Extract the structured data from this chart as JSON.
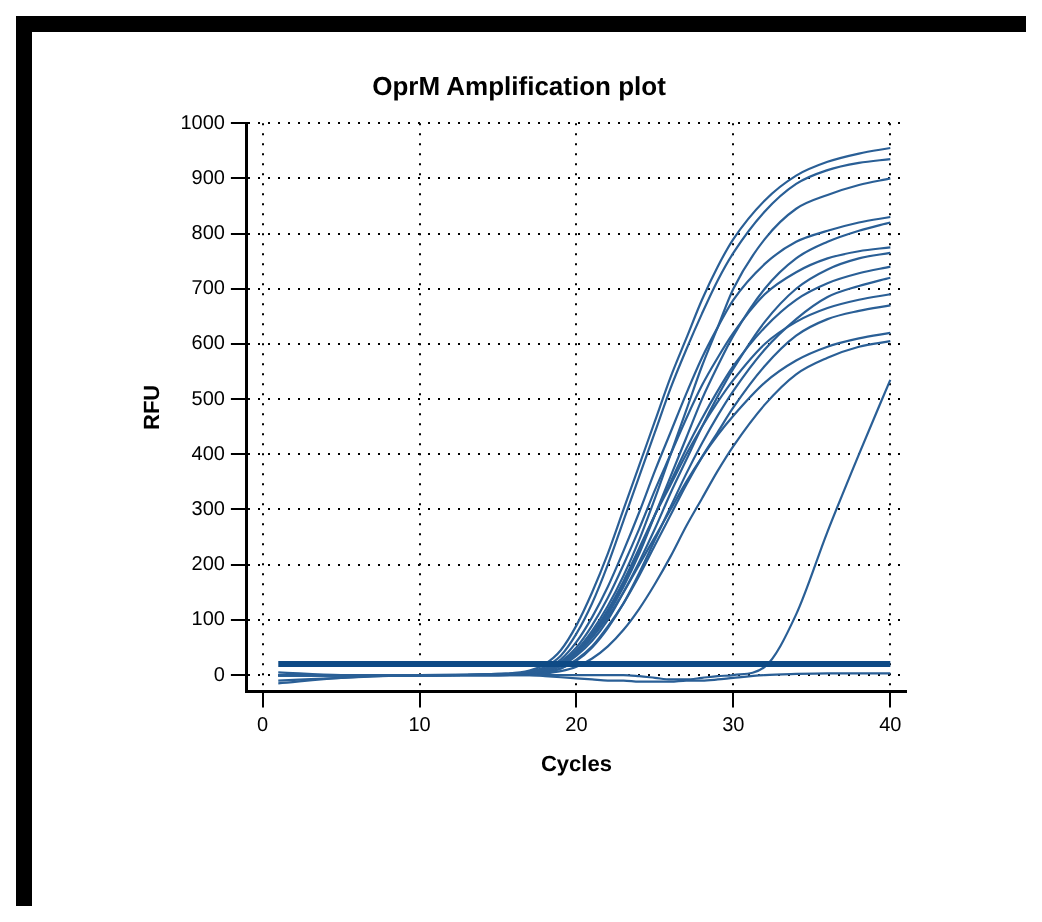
{
  "chart_data": {
    "type": "line",
    "title": "OprM Amplification plot",
    "xlabel": "Cycles",
    "ylabel": "RFU",
    "x": [
      1,
      5,
      10,
      15,
      17,
      18,
      19,
      20,
      21,
      22,
      23,
      24,
      25,
      26,
      27,
      28,
      29,
      30,
      32,
      34,
      36,
      38,
      40
    ],
    "xlim": [
      -1,
      41
    ],
    "xticks": [
      0,
      10,
      20,
      30,
      40
    ],
    "ylim": [
      -30,
      1000
    ],
    "yticks": [
      0,
      100,
      200,
      300,
      400,
      500,
      600,
      700,
      800,
      900,
      1000
    ],
    "grid": true,
    "legend": false,
    "marker": "none",
    "line_style": "solid",
    "ref_lines": [
      {
        "axis": "y",
        "value": 20,
        "color": "#0e4a85"
      }
    ],
    "series": [
      {
        "color": "#2a5f96",
        "values": [
          0,
          0,
          0,
          2,
          8,
          20,
          45,
          90,
          150,
          220,
          300,
          380,
          460,
          540,
          610,
          680,
          740,
          790,
          860,
          905,
          930,
          945,
          955
        ]
      },
      {
        "color": "#2a5f96",
        "values": [
          0,
          0,
          0,
          2,
          6,
          15,
          35,
          75,
          130,
          200,
          280,
          360,
          440,
          520,
          590,
          655,
          715,
          765,
          840,
          890,
          915,
          928,
          935
        ]
      },
      {
        "color": "#2a5f96",
        "values": [
          0,
          0,
          0,
          1,
          4,
          10,
          22,
          45,
          80,
          125,
          180,
          245,
          320,
          400,
          480,
          560,
          630,
          700,
          790,
          845,
          870,
          888,
          900
        ]
      },
      {
        "color": "#2a5f96",
        "values": [
          0,
          0,
          0,
          1,
          5,
          12,
          28,
          60,
          105,
          160,
          225,
          295,
          370,
          440,
          510,
          575,
          630,
          680,
          745,
          785,
          805,
          820,
          830
        ]
      },
      {
        "color": "#2a5f96",
        "values": [
          0,
          0,
          0,
          1,
          3,
          8,
          18,
          38,
          70,
          110,
          160,
          220,
          290,
          360,
          430,
          500,
          560,
          615,
          700,
          755,
          785,
          805,
          820
        ]
      },
      {
        "color": "#2a5f96",
        "values": [
          0,
          0,
          0,
          1,
          4,
          10,
          24,
          50,
          90,
          140,
          200,
          265,
          335,
          400,
          465,
          525,
          575,
          620,
          690,
          730,
          755,
          768,
          775
        ]
      },
      {
        "color": "#2a5f96",
        "values": [
          0,
          0,
          0,
          1,
          3,
          7,
          16,
          35,
          62,
          100,
          150,
          205,
          265,
          330,
          390,
          450,
          505,
          555,
          640,
          700,
          735,
          755,
          765
        ]
      },
      {
        "color": "#2a5f96",
        "values": [
          0,
          0,
          0,
          1,
          3,
          8,
          18,
          40,
          72,
          115,
          165,
          225,
          290,
          350,
          410,
          465,
          515,
          560,
          630,
          680,
          710,
          728,
          740
        ]
      },
      {
        "color": "#2a5f96",
        "values": [
          0,
          0,
          0,
          0,
          2,
          5,
          12,
          26,
          50,
          85,
          130,
          185,
          245,
          305,
          365,
          420,
          470,
          515,
          590,
          645,
          685,
          705,
          720
        ]
      },
      {
        "color": "#2a5f96",
        "values": [
          0,
          0,
          0,
          1,
          3,
          8,
          20,
          42,
          75,
          118,
          170,
          230,
          290,
          345,
          400,
          450,
          495,
          535,
          600,
          640,
          665,
          680,
          690
        ]
      },
      {
        "color": "#2a5f96",
        "values": [
          0,
          0,
          0,
          0,
          2,
          5,
          12,
          28,
          52,
          88,
          130,
          180,
          235,
          290,
          345,
          395,
          440,
          485,
          560,
          615,
          645,
          660,
          670
        ]
      },
      {
        "color": "#2a5f96",
        "values": [
          5,
          0,
          0,
          1,
          3,
          8,
          18,
          38,
          68,
          105,
          150,
          200,
          250,
          300,
          350,
          395,
          435,
          470,
          530,
          570,
          595,
          610,
          620
        ]
      },
      {
        "color": "#2a5f96",
        "values": [
          -15,
          -5,
          0,
          0,
          1,
          3,
          7,
          15,
          30,
          52,
          82,
          120,
          165,
          215,
          270,
          320,
          370,
          415,
          490,
          545,
          575,
          595,
          605
        ]
      },
      {
        "color": "#2a5f96",
        "values": [
          0,
          0,
          0,
          0,
          0,
          0,
          0,
          0,
          0,
          0,
          0,
          -2,
          -5,
          -8,
          -8,
          -5,
          -2,
          0,
          15,
          110,
          260,
          400,
          535
        ]
      },
      {
        "color": "#2a5f96",
        "values": [
          -10,
          -5,
          0,
          0,
          0,
          -2,
          -4,
          -6,
          -8,
          -10,
          -10,
          -12,
          -12,
          -12,
          -10,
          -10,
          -8,
          -5,
          0,
          2,
          3,
          3,
          3
        ]
      }
    ]
  }
}
